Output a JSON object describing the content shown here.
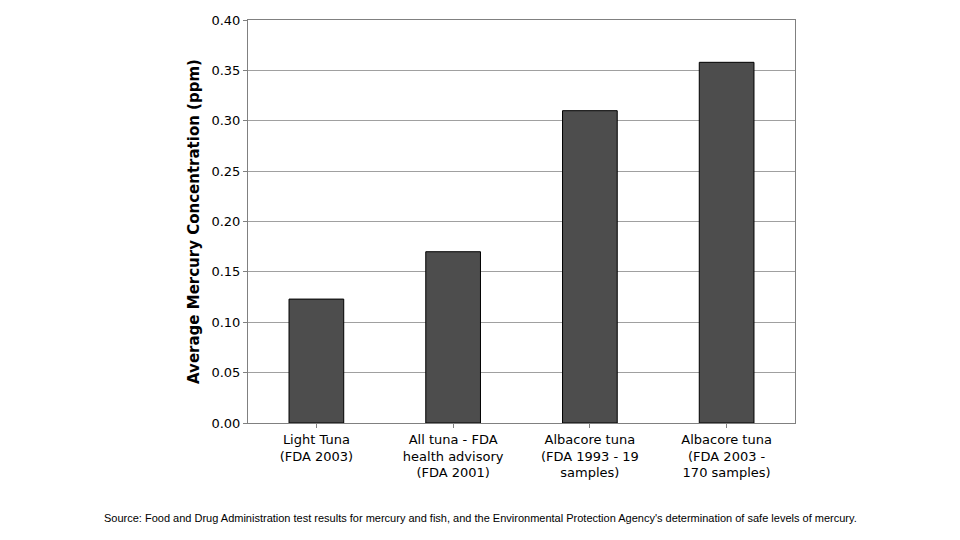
{
  "chart_data": {
    "type": "bar",
    "y_label": "Average Mercury Concentration (ppm)",
    "categories": [
      "Light Tuna\n(FDA 2003)",
      "All tuna - FDA\nhealth advisory\n(FDA 2001)",
      "Albacore tuna\n(FDA 1993 - 19\nsamples)",
      "Albacore tuna\n(FDA 2003 -\n170 samples)"
    ],
    "values": [
      0.123,
      0.17,
      0.31,
      0.358
    ],
    "color": "#4d4d4d",
    "ylim": [
      0,
      0.4
    ],
    "yticks": [
      {
        "value": 0,
        "label": "0.00"
      },
      0.05,
      {
        "value": 0.1,
        "label": "0.10"
      },
      0.15,
      {
        "value": 0.2,
        "label": "0.20"
      },
      0.25,
      {
        "value": 0.3,
        "label": "0.30"
      },
      0.35,
      {
        "value": 0.4,
        "label": "0.40"
      }
    ],
    "grid": true,
    "annotations": [
      "Source: Food and Drug Administration test results for mercury and fish, and the Environmental Protection Agency's determination of safe levels of mercury."
    ]
  }
}
